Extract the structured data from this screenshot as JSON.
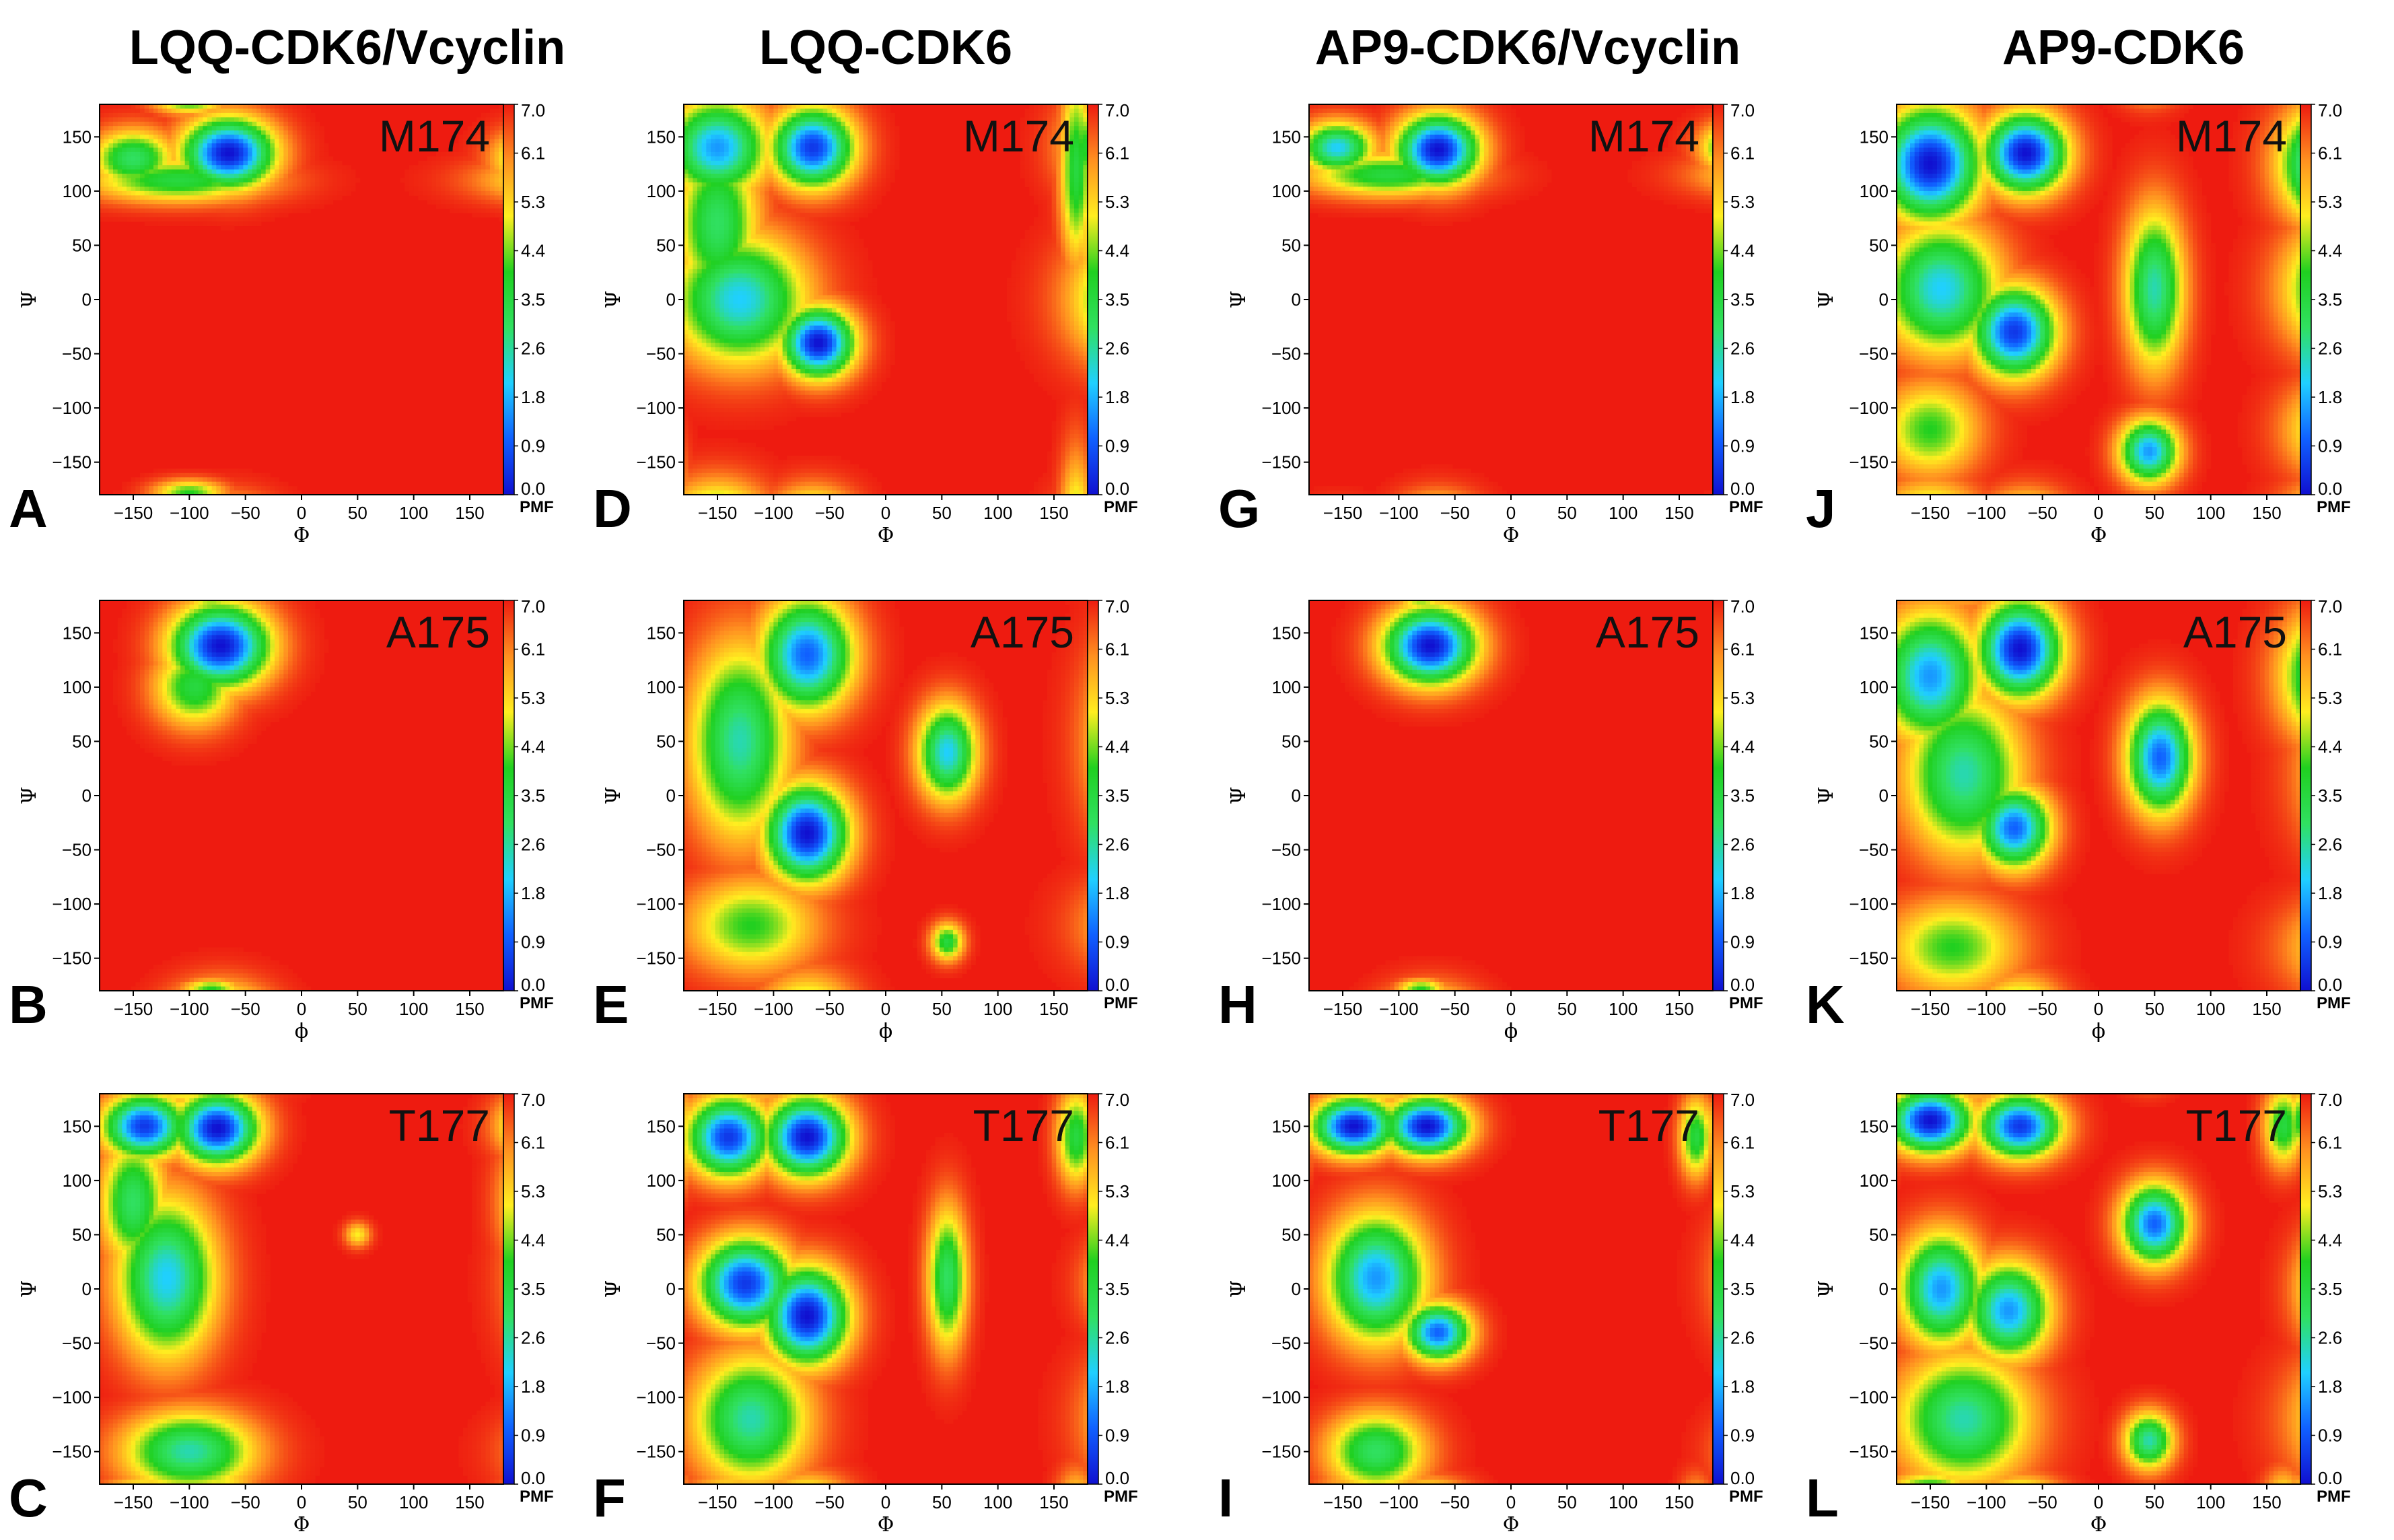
{
  "figure": {
    "colors": {
      "background": "#ffffff",
      "high_energy": "#ee1b10",
      "colormap": [
        "#1010d0",
        "#1060ff",
        "#20d0ff",
        "#30e060",
        "#20d020",
        "#ffee20",
        "#ff9020",
        "#ee1b10"
      ]
    },
    "column_titles": [
      "LQQ-CDK6/Vcyclin",
      "LQQ-CDK6",
      "AP9-CDK6/Vcyclin",
      "AP9-CDK6"
    ]
  },
  "chart_data": [
    {
      "panel": "A",
      "residue": "M174",
      "type": "heatmap",
      "xlabel": "Φ",
      "ylabel": "Ψ",
      "xticks": [
        "−150",
        "−100",
        "−50",
        "0",
        "50",
        "100",
        "150"
      ],
      "yticks": [
        "150",
        "100",
        "50",
        "0",
        "−50",
        "−100",
        "−150"
      ],
      "xlim": [
        -180,
        180
      ],
      "ylim": [
        -180,
        180
      ],
      "colorbar_label": "PMF",
      "colorbar_ticks": [
        "7.0",
        "6.1",
        "5.3",
        "4.4",
        "3.5",
        "2.6",
        "1.8",
        "0.9",
        "0.0"
      ],
      "zlim": [
        0,
        7
      ],
      "basins": [
        {
          "phi": -65,
          "psi": 135,
          "sphi": 28,
          "spsi": 22,
          "depth": 7
        },
        {
          "phi": -150,
          "psi": 130,
          "sphi": 25,
          "spsi": 18,
          "depth": 4
        },
        {
          "phi": -110,
          "psi": 110,
          "sphi": 55,
          "spsi": 14,
          "depth": 3.5
        },
        {
          "phi": -100,
          "psi": -178,
          "sphi": 22,
          "spsi": 8,
          "depth": 3
        }
      ]
    },
    {
      "panel": "B",
      "residue": "A175",
      "type": "heatmap",
      "xlabel": "ϕ",
      "ylabel": "Ψ",
      "xticks": [
        "−150",
        "−100",
        "−50",
        "0",
        "50",
        "100",
        "150"
      ],
      "yticks": [
        "150",
        "100",
        "50",
        "0",
        "−50",
        "−100",
        "−150"
      ],
      "xlim": [
        -180,
        180
      ],
      "ylim": [
        -180,
        180
      ],
      "colorbar_label": "PMF",
      "colorbar_ticks": [
        "7.0",
        "6.1",
        "5.3",
        "4.4",
        "3.5",
        "2.6",
        "1.8",
        "0.9",
        "0.0"
      ],
      "zlim": [
        0,
        7
      ],
      "basins": [
        {
          "phi": -72,
          "psi": 138,
          "sphi": 30,
          "spsi": 26,
          "depth": 7
        },
        {
          "phi": -95,
          "psi": 100,
          "sphi": 25,
          "spsi": 25,
          "depth": 3.5
        },
        {
          "phi": -80,
          "psi": -178,
          "sphi": 18,
          "spsi": 6,
          "depth": 3
        }
      ]
    },
    {
      "panel": "C",
      "residue": "T177",
      "type": "heatmap",
      "xlabel": "Φ",
      "ylabel": "Ψ",
      "xticks": [
        "−150",
        "−100",
        "−50",
        "0",
        "50",
        "100",
        "150"
      ],
      "yticks": [
        "150",
        "100",
        "50",
        "0",
        "−50",
        "−100",
        "−150"
      ],
      "xlim": [
        -180,
        180
      ],
      "ylim": [
        -180,
        180
      ],
      "colorbar_label": "PMF",
      "colorbar_ticks": [
        "7.0",
        "6.1",
        "5.3",
        "4.4",
        "3.5",
        "2.6",
        "1.8",
        "0.9",
        "0.0"
      ],
      "zlim": [
        0,
        7
      ],
      "basins": [
        {
          "phi": -140,
          "psi": 150,
          "sphi": 25,
          "spsi": 20,
          "depth": 6.5
        },
        {
          "phi": -75,
          "psi": 148,
          "sphi": 25,
          "spsi": 22,
          "depth": 7
        },
        {
          "phi": -120,
          "psi": 10,
          "sphi": 30,
          "spsi": 50,
          "depth": 5
        },
        {
          "phi": -150,
          "psi": 80,
          "sphi": 20,
          "spsi": 40,
          "depth": 4
        },
        {
          "phi": -100,
          "psi": -150,
          "sphi": 40,
          "spsi": 25,
          "depth": 4.5
        },
        {
          "phi": 50,
          "psi": 50,
          "sphi": 8,
          "spsi": 8,
          "depth": 2
        }
      ]
    },
    {
      "panel": "D",
      "residue": "M174",
      "type": "heatmap",
      "xlabel": "Φ",
      "ylabel": "Ψ",
      "xticks": [
        "−150",
        "−100",
        "−50",
        "0",
        "50",
        "100",
        "150"
      ],
      "yticks": [
        "150",
        "100",
        "50",
        "0",
        "−50",
        "−100",
        "−150"
      ],
      "xlim": [
        -180,
        180
      ],
      "ylim": [
        -180,
        180
      ],
      "colorbar_label": "PMF",
      "colorbar_ticks": [
        "7.0",
        "6.1",
        "5.3",
        "4.4",
        "3.5",
        "2.6",
        "1.8",
        "0.9",
        "0.0"
      ],
      "zlim": [
        0,
        7
      ],
      "basins": [
        {
          "phi": -150,
          "psi": 140,
          "sphi": 30,
          "spsi": 30,
          "depth": 5.5
        },
        {
          "phi": -65,
          "psi": 140,
          "sphi": 25,
          "spsi": 25,
          "depth": 6.5
        },
        {
          "phi": -60,
          "psi": -40,
          "sphi": 22,
          "spsi": 22,
          "depth": 7
        },
        {
          "phi": -130,
          "psi": 0,
          "sphi": 40,
          "spsi": 40,
          "depth": 5
        },
        {
          "phi": -150,
          "psi": 70,
          "sphi": 25,
          "spsi": 50,
          "depth": 4
        },
        {
          "phi": 170,
          "psi": 120,
          "sphi": 10,
          "spsi": 60,
          "depth": 3.5
        }
      ]
    },
    {
      "panel": "E",
      "residue": "A175",
      "type": "heatmap",
      "xlabel": "ϕ",
      "ylabel": "Ψ",
      "xticks": [
        "−150",
        "−100",
        "−50",
        "0",
        "50",
        "100",
        "150"
      ],
      "yticks": [
        "150",
        "100",
        "50",
        "0",
        "−50",
        "−100",
        "−150"
      ],
      "xlim": [
        -180,
        180
      ],
      "ylim": [
        -180,
        180
      ],
      "colorbar_label": "PMF",
      "colorbar_ticks": [
        "7.0",
        "6.1",
        "5.3",
        "4.4",
        "3.5",
        "2.6",
        "1.8",
        "0.9",
        "0.0"
      ],
      "zlim": [
        0,
        7
      ],
      "basins": [
        {
          "phi": -70,
          "psi": 130,
          "sphi": 28,
          "spsi": 35,
          "depth": 6
        },
        {
          "phi": -70,
          "psi": -35,
          "sphi": 25,
          "spsi": 30,
          "depth": 7
        },
        {
          "phi": -130,
          "psi": 50,
          "sphi": 30,
          "spsi": 60,
          "depth": 4.5
        },
        {
          "phi": 55,
          "psi": 40,
          "sphi": 18,
          "spsi": 30,
          "depth": 5
        },
        {
          "phi": -120,
          "psi": -120,
          "sphi": 40,
          "spsi": 30,
          "depth": 3
        },
        {
          "phi": 55,
          "psi": -135,
          "sphi": 10,
          "spsi": 12,
          "depth": 3.5
        }
      ]
    },
    {
      "panel": "F",
      "residue": "T177",
      "type": "heatmap",
      "xlabel": "Φ",
      "ylabel": "Ψ",
      "xticks": [
        "−150",
        "−100",
        "−50",
        "0",
        "50",
        "100",
        "150"
      ],
      "yticks": [
        "150",
        "100",
        "50",
        "0",
        "−50",
        "−100",
        "−150"
      ],
      "xlim": [
        -180,
        180
      ],
      "ylim": [
        -180,
        180
      ],
      "colorbar_label": "PMF",
      "colorbar_ticks": [
        "7.0",
        "6.1",
        "5.3",
        "4.4",
        "3.5",
        "2.6",
        "1.8",
        "0.9",
        "0.0"
      ],
      "zlim": [
        0,
        7
      ],
      "basins": [
        {
          "phi": -140,
          "psi": 140,
          "sphi": 25,
          "spsi": 25,
          "depth": 6.5
        },
        {
          "phi": -70,
          "psi": 140,
          "sphi": 25,
          "spsi": 25,
          "depth": 7
        },
        {
          "phi": -125,
          "psi": 5,
          "sphi": 28,
          "spsi": 28,
          "depth": 6.5
        },
        {
          "phi": -70,
          "psi": -25,
          "sphi": 25,
          "spsi": 30,
          "depth": 7
        },
        {
          "phi": -120,
          "psi": -120,
          "sphi": 35,
          "spsi": 40,
          "depth": 4.5
        },
        {
          "phi": 55,
          "psi": 10,
          "sphi": 12,
          "spsi": 45,
          "depth": 4
        },
        {
          "phi": 170,
          "psi": 140,
          "sphi": 12,
          "spsi": 30,
          "depth": 3.5
        }
      ]
    },
    {
      "panel": "G",
      "residue": "M174",
      "type": "heatmap",
      "xlabel": "Φ",
      "ylabel": "Ψ",
      "xticks": [
        "−150",
        "−100",
        "−50",
        "0",
        "50",
        "100",
        "150"
      ],
      "yticks": [
        "150",
        "100",
        "50",
        "0",
        "−50",
        "−100",
        "−150"
      ],
      "xlim": [
        -180,
        180
      ],
      "ylim": [
        -180,
        180
      ],
      "colorbar_label": "PMF",
      "colorbar_ticks": [
        "7.0",
        "6.1",
        "5.3",
        "4.4",
        "3.5",
        "2.6",
        "1.8",
        "0.9",
        "0.0"
      ],
      "zlim": [
        0,
        7
      ],
      "basins": [
        {
          "phi": -65,
          "psi": 138,
          "sphi": 25,
          "spsi": 22,
          "depth": 7
        },
        {
          "phi": -155,
          "psi": 140,
          "sphi": 22,
          "spsi": 16,
          "depth": 5
        },
        {
          "phi": -110,
          "psi": 115,
          "sphi": 50,
          "spsi": 14,
          "depth": 3.5
        }
      ]
    },
    {
      "panel": "H",
      "residue": "A175",
      "type": "heatmap",
      "xlabel": "ϕ",
      "ylabel": "Ψ",
      "xticks": [
        "−150",
        "−100",
        "−50",
        "0",
        "50",
        "100",
        "150"
      ],
      "yticks": [
        "150",
        "100",
        "50",
        "0",
        "−50",
        "−100",
        "−150"
      ],
      "xlim": [
        -180,
        180
      ],
      "ylim": [
        -180,
        180
      ],
      "colorbar_label": "PMF",
      "colorbar_ticks": [
        "7.0",
        "6.1",
        "5.3",
        "4.4",
        "3.5",
        "2.6",
        "1.8",
        "0.9",
        "0.0"
      ],
      "zlim": [
        0,
        7
      ],
      "basins": [
        {
          "phi": -72,
          "psi": 138,
          "sphi": 28,
          "spsi": 24,
          "depth": 7
        },
        {
          "phi": -80,
          "psi": -178,
          "sphi": 15,
          "spsi": 6,
          "depth": 3
        }
      ]
    },
    {
      "panel": "I",
      "residue": "T177",
      "type": "heatmap",
      "xlabel": "Φ",
      "ylabel": "Ψ",
      "xticks": [
        "−150",
        "−100",
        "−50",
        "0",
        "50",
        "100",
        "150"
      ],
      "yticks": [
        "150",
        "100",
        "50",
        "0",
        "−50",
        "−100",
        "−150"
      ],
      "xlim": [
        -180,
        180
      ],
      "ylim": [
        -180,
        180
      ],
      "colorbar_label": "PMF",
      "colorbar_ticks": [
        "7.0",
        "6.1",
        "5.3",
        "4.4",
        "3.5",
        "2.6",
        "1.8",
        "0.9",
        "0.0"
      ],
      "zlim": [
        0,
        7
      ],
      "basins": [
        {
          "phi": -140,
          "psi": 150,
          "sphi": 25,
          "spsi": 18,
          "depth": 7
        },
        {
          "phi": -75,
          "psi": 150,
          "sphi": 25,
          "spsi": 18,
          "depth": 7
        },
        {
          "phi": -120,
          "psi": 10,
          "sphi": 30,
          "spsi": 40,
          "depth": 5.5
        },
        {
          "phi": -65,
          "psi": -40,
          "sphi": 20,
          "spsi": 18,
          "depth": 6
        },
        {
          "phi": -120,
          "psi": -150,
          "sphi": 30,
          "spsi": 25,
          "depth": 4
        },
        {
          "phi": 165,
          "psi": 140,
          "sphi": 10,
          "spsi": 25,
          "depth": 3.5
        }
      ]
    },
    {
      "panel": "J",
      "residue": "M174",
      "type": "heatmap",
      "xlabel": "Φ",
      "ylabel": "Ψ",
      "xticks": [
        "−150",
        "−100",
        "−50",
        "0",
        "50",
        "100",
        "150"
      ],
      "yticks": [
        "150",
        "100",
        "50",
        "0",
        "−50",
        "−100",
        "−150"
      ],
      "xlim": [
        -180,
        180
      ],
      "ylim": [
        -180,
        180
      ],
      "colorbar_label": "PMF",
      "colorbar_ticks": [
        "7.0",
        "6.1",
        "5.3",
        "4.4",
        "3.5",
        "2.6",
        "1.8",
        "0.9",
        "0.0"
      ],
      "zlim": [
        0,
        7
      ],
      "basins": [
        {
          "phi": -150,
          "psi": 125,
          "sphi": 30,
          "spsi": 35,
          "depth": 7
        },
        {
          "phi": -65,
          "psi": 135,
          "sphi": 25,
          "spsi": 25,
          "depth": 7
        },
        {
          "phi": -75,
          "psi": -30,
          "sphi": 25,
          "spsi": 28,
          "depth": 6.5
        },
        {
          "phi": -140,
          "psi": 10,
          "sphi": 35,
          "spsi": 40,
          "depth": 5
        },
        {
          "phi": 50,
          "psi": 10,
          "sphi": 18,
          "spsi": 50,
          "depth": 4.5
        },
        {
          "phi": 45,
          "psi": -140,
          "sphi": 18,
          "spsi": 20,
          "depth": 5.5
        },
        {
          "phi": -150,
          "psi": -120,
          "sphi": 30,
          "spsi": 30,
          "depth": 3
        }
      ]
    },
    {
      "panel": "K",
      "residue": "A175",
      "type": "heatmap",
      "xlabel": "ϕ",
      "ylabel": "Ψ",
      "xticks": [
        "−150",
        "−100",
        "−50",
        "0",
        "50",
        "100",
        "150"
      ],
      "yticks": [
        "150",
        "100",
        "50",
        "0",
        "−50",
        "−100",
        "−150"
      ],
      "xlim": [
        -180,
        180
      ],
      "ylim": [
        -180,
        180
      ],
      "colorbar_label": "PMF",
      "colorbar_ticks": [
        "7.0",
        "6.1",
        "5.3",
        "4.4",
        "3.5",
        "2.6",
        "1.8",
        "0.9",
        "0.0"
      ],
      "zlim": [
        0,
        7
      ],
      "basins": [
        {
          "phi": -70,
          "psi": 135,
          "sphi": 25,
          "spsi": 30,
          "depth": 7
        },
        {
          "phi": -150,
          "psi": 110,
          "sphi": 30,
          "spsi": 40,
          "depth": 5.5
        },
        {
          "phi": -75,
          "psi": -30,
          "sphi": 22,
          "spsi": 25,
          "depth": 6
        },
        {
          "phi": -120,
          "psi": 20,
          "sphi": 35,
          "spsi": 50,
          "depth": 4.5
        },
        {
          "phi": 55,
          "psi": 35,
          "sphi": 20,
          "spsi": 35,
          "depth": 6
        },
        {
          "phi": -130,
          "psi": -140,
          "sphi": 40,
          "spsi": 30,
          "depth": 3
        }
      ]
    },
    {
      "panel": "L",
      "residue": "T177",
      "type": "heatmap",
      "xlabel": "Φ",
      "ylabel": "Ψ",
      "xticks": [
        "−150",
        "−100",
        "−50",
        "0",
        "50",
        "100",
        "150"
      ],
      "yticks": [
        "150",
        "100",
        "50",
        "0",
        "−50",
        "−100",
        "−150"
      ],
      "xlim": [
        -180,
        180
      ],
      "ylim": [
        -180,
        180
      ],
      "colorbar_label": "PMF",
      "colorbar_ticks": [
        "7.0",
        "6.1",
        "5.3",
        "4.4",
        "3.5",
        "2.6",
        "1.8",
        "0.9",
        "0.0"
      ],
      "zlim": [
        0,
        7
      ],
      "basins": [
        {
          "phi": -150,
          "psi": 155,
          "sphi": 25,
          "spsi": 20,
          "depth": 7
        },
        {
          "phi": -70,
          "psi": 150,
          "sphi": 25,
          "spsi": 20,
          "depth": 6.5
        },
        {
          "phi": -140,
          "psi": 0,
          "sphi": 25,
          "spsi": 35,
          "depth": 5.5
        },
        {
          "phi": -80,
          "psi": -20,
          "sphi": 25,
          "spsi": 30,
          "depth": 5.5
        },
        {
          "phi": 50,
          "psi": 60,
          "sphi": 20,
          "spsi": 25,
          "depth": 6
        },
        {
          "phi": -120,
          "psi": -120,
          "sphi": 40,
          "spsi": 40,
          "depth": 4.5
        },
        {
          "phi": 45,
          "psi": -140,
          "sphi": 15,
          "spsi": 18,
          "depth": 4.5
        },
        {
          "phi": 165,
          "psi": 150,
          "sphi": 12,
          "spsi": 25,
          "depth": 3.5
        }
      ]
    }
  ]
}
